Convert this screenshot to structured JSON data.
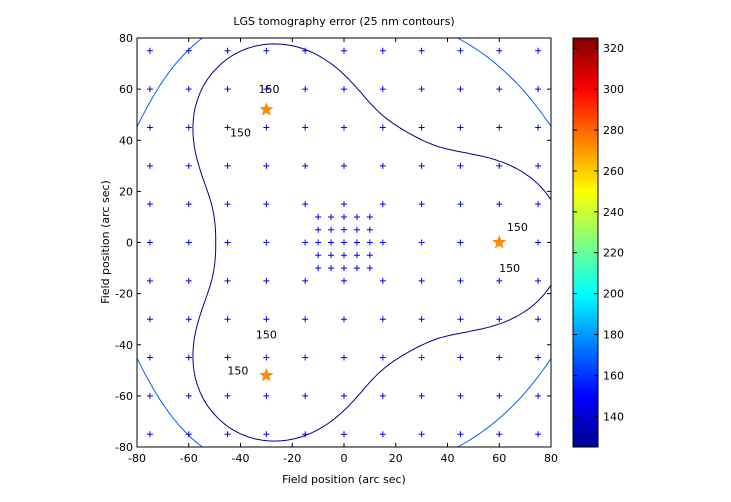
{
  "chart_data": {
    "type": "contour",
    "title": "LGS tomography error (25 nm contours)",
    "xlabel": "Field position (arc sec)",
    "ylabel": "Field position (arc sec)",
    "xlim": [
      -80,
      80
    ],
    "ylim": [
      -80,
      80
    ],
    "xticks": [
      "-80",
      "-60",
      "-40",
      "-20",
      "0",
      "20",
      "40",
      "60",
      "80"
    ],
    "yticks": [
      "-80",
      "-60",
      "-40",
      "-20",
      "0",
      "20",
      "40",
      "60",
      "80"
    ],
    "colorbar": {
      "ticks": [
        "140",
        "160",
        "180",
        "200",
        "220",
        "240",
        "260",
        "280",
        "300",
        "320"
      ],
      "range": [
        125,
        325
      ]
    },
    "contour_interval": 25,
    "contour_labels": [
      {
        "text": "150",
        "x": -29,
        "y": 60
      },
      {
        "text": "150",
        "x": -40,
        "y": 43
      },
      {
        "text": "150",
        "x": -30,
        "y": -36
      },
      {
        "text": "150",
        "x": -41,
        "y": -50
      },
      {
        "text": "150",
        "x": 67,
        "y": 6
      },
      {
        "text": "150",
        "x": 64,
        "y": -10
      }
    ],
    "lgs_stars": [
      {
        "x": -30,
        "y": 52
      },
      {
        "x": 60,
        "y": 0
      },
      {
        "x": -30,
        "y": -52
      }
    ],
    "grid_points": {
      "outer": [
        -75,
        -60,
        -45,
        -30,
        -15,
        0,
        15,
        30,
        45,
        60,
        75
      ],
      "inner": [
        -10,
        -5,
        0,
        5,
        10
      ]
    },
    "grid": false
  },
  "colors": {
    "contour_150": "#00008f",
    "contour_175": "#0060ff",
    "contour_200": "#00dfff",
    "contour_225": "#70ff8f",
    "contour_250": "#ffdf00",
    "contour_275": "#ff6000",
    "contour_300": "#c00000",
    "marker": "#0000ff",
    "star": "#ff8c00"
  }
}
